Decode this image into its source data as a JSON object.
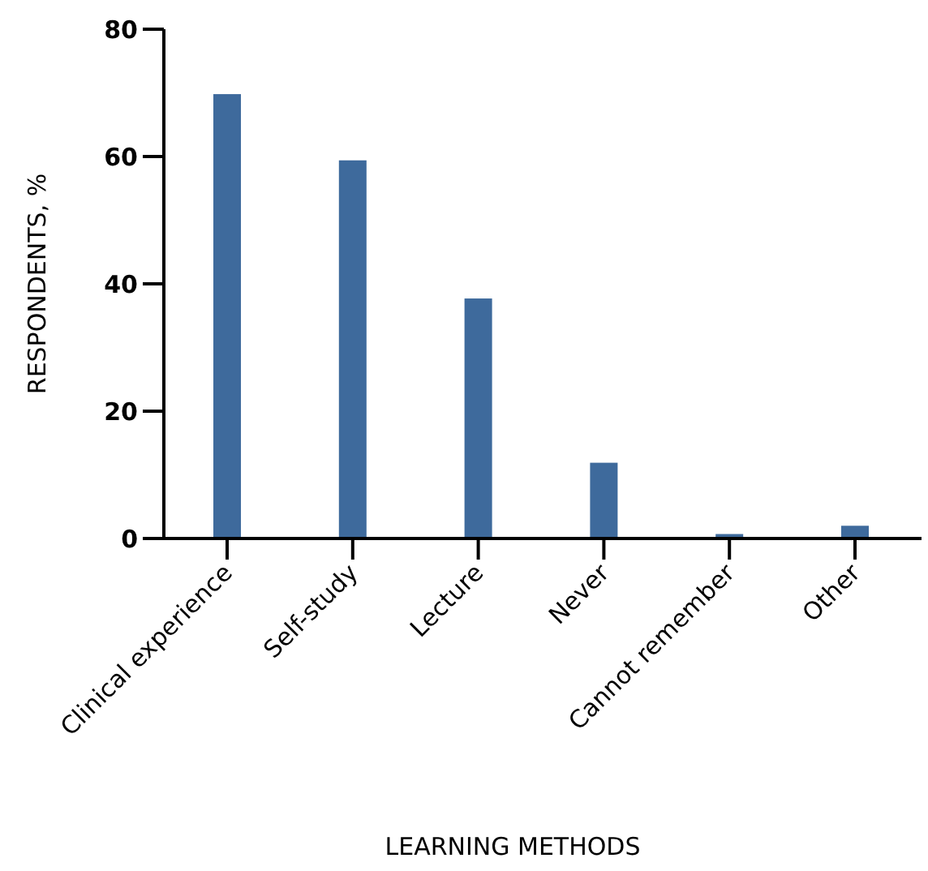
{
  "chart_data": {
    "type": "bar",
    "xlabel": "LEARNING METHODS",
    "ylabel": "RESPONDENTS, %",
    "categories": [
      "Clinical experience",
      "Self-study",
      "Lecture",
      "Never",
      "Cannot remember",
      "Other"
    ],
    "values": [
      69.8,
      59.4,
      37.7,
      11.9,
      0.7,
      2.0
    ],
    "color": "#3e6a9c",
    "ylim": [
      0,
      80
    ],
    "yticks": [
      0,
      20,
      40,
      60,
      80
    ],
    "grid": false
  }
}
